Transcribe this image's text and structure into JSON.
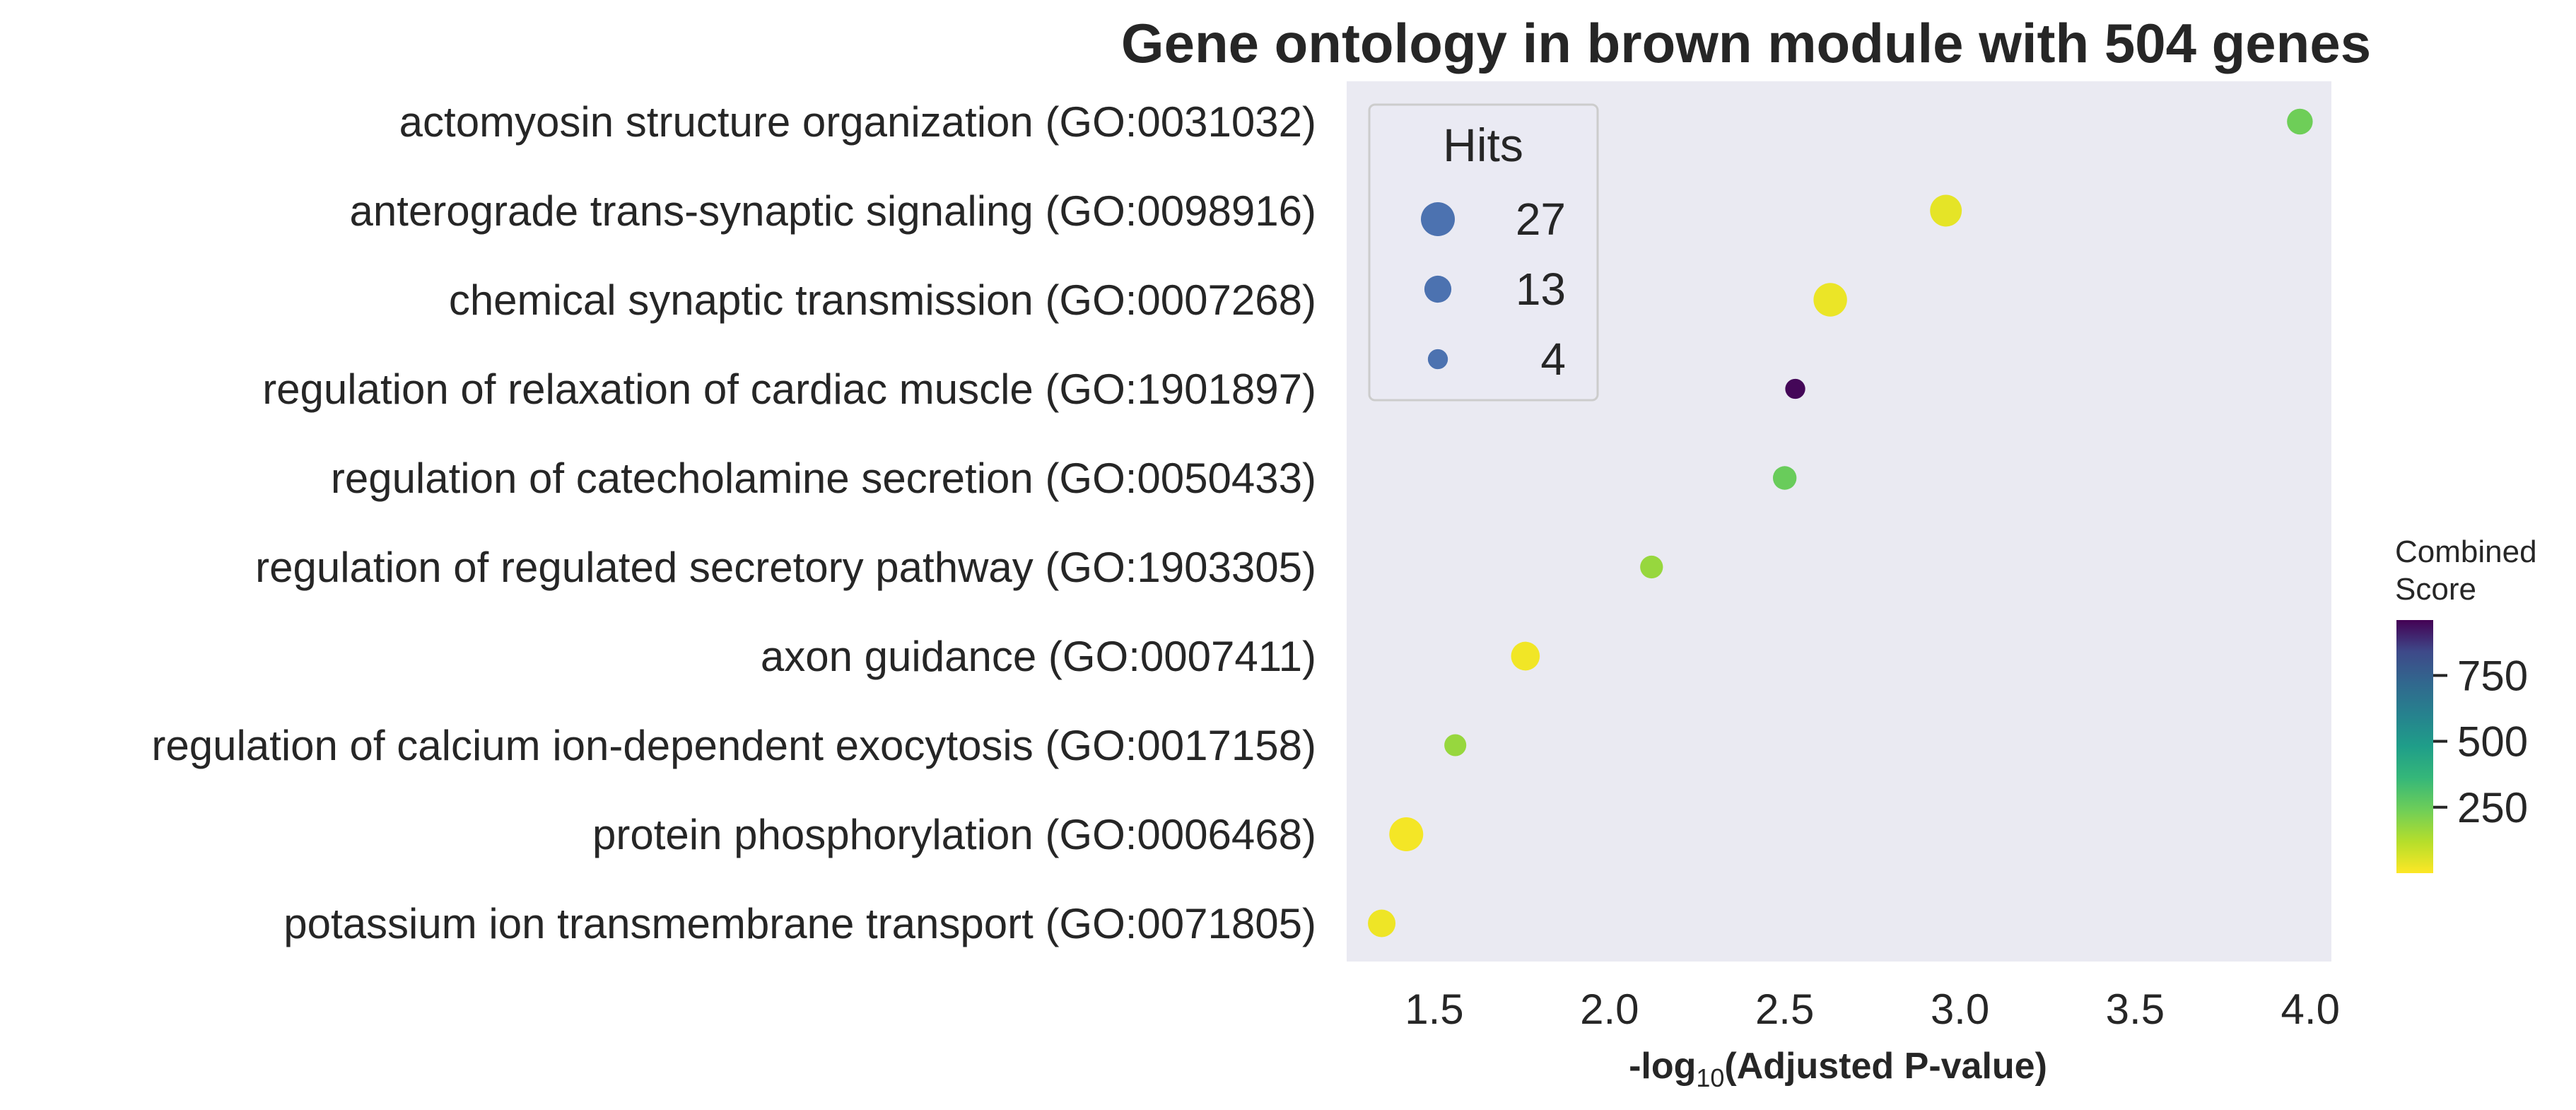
{
  "chart_data": {
    "type": "scatter",
    "title": "Gene ontology in brown module with 504 genes",
    "xlabel_main": "-log",
    "xlabel_sub": "10",
    "xlabel_rest": "(Adjusted P-value)",
    "xlim": [
      1.25,
      4.06
    ],
    "xticks": [
      1.5,
      2.0,
      2.5,
      3.0,
      3.5,
      4.0
    ],
    "xtick_labels": [
      "1.5",
      "2.0",
      "2.5",
      "3.0",
      "3.5",
      "4.0"
    ],
    "grid": false,
    "categories": [
      "actomyosin structure organization (GO:0031032)",
      "anterograde trans-synaptic signaling (GO:0098916)",
      "chemical synaptic transmission (GO:0007268)",
      "regulation of relaxation of cardiac muscle (GO:1901897)",
      "regulation of catecholamine secretion (GO:0050433)",
      "regulation of regulated secretory pathway (GO:1903305)",
      "axon guidance (GO:0007411)",
      "regulation of calcium ion-dependent exocytosis (GO:0017158)",
      "protein phosphorylation (GO:0006468)",
      "potassium ion transmembrane transport (GO:0071805)"
    ],
    "points": [
      {
        "x": 3.97,
        "hits": 11,
        "combined_score": 240
      },
      {
        "x": 2.96,
        "hits": 22,
        "combined_score": 40
      },
      {
        "x": 2.63,
        "hits": 26,
        "combined_score": 30
      },
      {
        "x": 2.53,
        "hits": 4,
        "combined_score": 950
      },
      {
        "x": 2.5,
        "hits": 8,
        "combined_score": 250
      },
      {
        "x": 2.12,
        "hits": 7,
        "combined_score": 170
      },
      {
        "x": 1.76,
        "hits": 16,
        "combined_score": 20
      },
      {
        "x": 1.56,
        "hits": 6,
        "combined_score": 170
      },
      {
        "x": 1.42,
        "hits": 27,
        "combined_score": 15
      },
      {
        "x": 1.35,
        "hits": 14,
        "combined_score": 25
      }
    ],
    "size_legend": {
      "title": "Hits",
      "placement": "upper-left",
      "entries": [
        {
          "label": "27",
          "hits": 27
        },
        {
          "label": "13",
          "hits": 13
        },
        {
          "label": "4",
          "hits": 4
        }
      ]
    },
    "colorbar": {
      "title_line1": "Combined",
      "title_line2": "Score",
      "colormap": "viridis_r",
      "range": [
        0,
        960
      ],
      "ticks": [
        250,
        500,
        750
      ],
      "tick_labels": [
        "250",
        "500",
        "750"
      ]
    },
    "colors": {
      "plot_background": "#eaeaf2",
      "legend_marker": "#4c72b0"
    }
  }
}
